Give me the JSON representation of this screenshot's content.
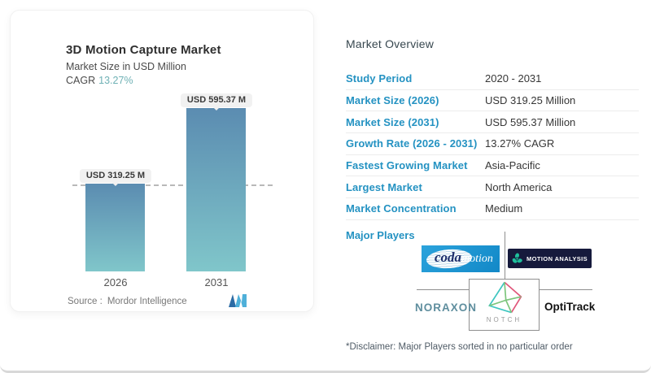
{
  "chart_card": {
    "title": "3D Motion Capture Market",
    "subtitle": "Market Size in USD Million",
    "cagr_label": "CAGR",
    "cagr_value": "13.27%",
    "source_label": "Source :",
    "source_name": "Mordor Intelligence"
  },
  "chart_data": {
    "type": "bar",
    "title": "3D Motion Capture Market",
    "ylabel": "Market Size in USD Million",
    "categories": [
      "2026",
      "2031"
    ],
    "values": [
      319.25,
      595.37
    ],
    "value_labels": [
      "USD 319.25 M",
      "USD 595.37 M"
    ],
    "cagr_percent": 13.27,
    "reference_line_value": 319.25,
    "ylim": [
      0,
      640
    ],
    "grid": false,
    "legend": "none",
    "bar_color_top": "#5b8cb1",
    "bar_color_bottom": "#80c6ca"
  },
  "overview": {
    "title": "Market Overview",
    "rows": [
      {
        "label": "Study Period",
        "value": "2020 - 2031"
      },
      {
        "label": "Market Size (2026)",
        "value": "USD 319.25 Million"
      },
      {
        "label": "Market Size (2031)",
        "value": "USD 595.37 Million"
      },
      {
        "label": "Growth Rate (2026 - 2031)",
        "value": "13.27% CAGR"
      },
      {
        "label": "Fastest Growing Market",
        "value": "Asia-Pacific"
      },
      {
        "label": "Largest Market",
        "value": "North America"
      },
      {
        "label": "Market Concentration",
        "value": "Medium"
      }
    ],
    "major_players_label": "Major Players",
    "players": {
      "codamotion_coda": "coda",
      "codamotion_motion": "motion",
      "motion_analysis": "MOTION ANALYSIS",
      "noraxon": "NORAXON",
      "notch": "NOTCH",
      "optitrack": "OptiTrack"
    },
    "disclaimer": "*Disclaimer: Major Players sorted in no particular order"
  },
  "colors": {
    "accent_blue": "#2492c2",
    "cagr_teal": "#6fb1b5",
    "coda_blue": "#1288c7",
    "motion_analysis_navy": "#161a3c",
    "noraxon_teal_gray": "#5f8e9e"
  }
}
